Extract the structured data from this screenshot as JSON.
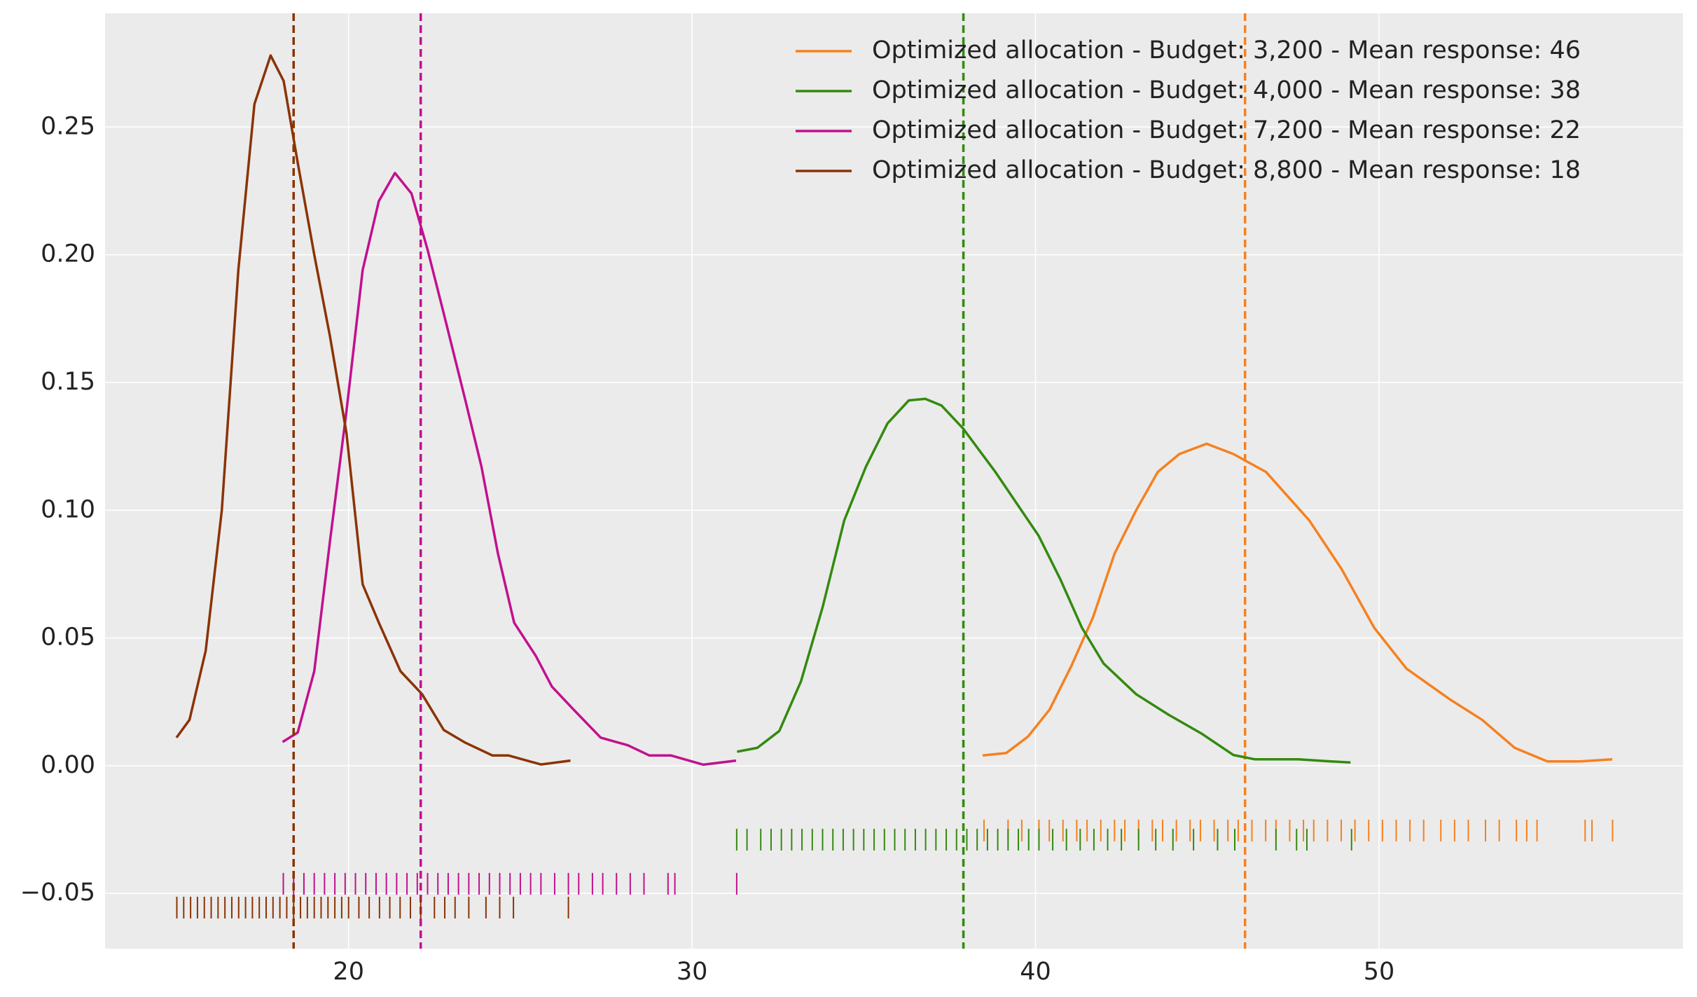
{
  "chart_data": {
    "type": "line",
    "subtype": "kde-with-rug",
    "xlim": [
      12.91,
      58.85
    ],
    "ylim": [
      -0.0716,
      0.2945
    ],
    "xticks": [
      20,
      30,
      40,
      50
    ],
    "yticks": [
      {
        "value": -0.05,
        "label": "−0.05"
      },
      {
        "value": 0,
        "label": "0.00"
      },
      0.05,
      {
        "value": 0.1,
        "label": "0.10"
      },
      0.15,
      {
        "value": 0.2,
        "label": "0.20"
      },
      0.25
    ],
    "grid": true,
    "legend": "upper right",
    "series": [
      {
        "name": "Optimized allocation - Budget: 3,200 - Mean response: 46",
        "color": "#f5811f",
        "mean": 46.1,
        "x": [
          38.46,
          39.15,
          39.78,
          40.41,
          41.04,
          41.67,
          42.3,
          42.93,
          43.56,
          44.19,
          44.98,
          45.76,
          46.71,
          47.97,
          48.91,
          49.86,
          50.8,
          52.06,
          53.0,
          53.95,
          54.9,
          55.84,
          56.79
        ],
        "values": [
          0.004,
          0.005,
          0.0114,
          0.022,
          0.039,
          0.058,
          0.083,
          0.1,
          0.115,
          0.122,
          0.126,
          0.122,
          0.115,
          0.096,
          0.077,
          0.054,
          0.038,
          0.026,
          0.018,
          0.007,
          0.0017,
          0.0017,
          0.0025
        ],
        "rug": [
          38.5,
          39.2,
          39.6,
          40.1,
          40.4,
          40.8,
          41.2,
          41.5,
          41.9,
          42.3,
          42.6,
          43.0,
          43.4,
          43.7,
          44.1,
          44.5,
          44.8,
          45.2,
          45.6,
          45.9,
          46.3,
          46.7,
          47.0,
          47.4,
          47.8,
          48.1,
          48.5,
          48.9,
          49.3,
          49.7,
          50.1,
          50.5,
          50.9,
          51.3,
          51.8,
          52.2,
          52.6,
          53.1,
          53.5,
          54.0,
          54.3,
          54.6,
          56.0,
          56.2,
          56.8
        ]
      },
      {
        "name": "Optimized allocation - Budget: 4,000 - Mean response: 38",
        "color": "#338a0f",
        "mean": 37.9,
        "x": [
          31.31,
          31.9,
          32.54,
          33.17,
          33.8,
          34.43,
          35.06,
          35.69,
          36.31,
          36.79,
          37.26,
          37.89,
          38.83,
          40.09,
          40.72,
          41.35,
          41.98,
          42.93,
          43.87,
          44.82,
          45.76,
          46.39,
          47.65,
          48.6,
          49.17
        ],
        "values": [
          0.0055,
          0.007,
          0.0136,
          0.033,
          0.062,
          0.096,
          0.117,
          0.134,
          0.143,
          0.1436,
          0.141,
          0.132,
          0.115,
          0.09,
          0.073,
          0.054,
          0.04,
          0.028,
          0.02,
          0.0127,
          0.0042,
          0.0025,
          0.0025,
          0.0017,
          0.0013
        ],
        "rug": [
          31.3,
          31.6,
          32.0,
          32.3,
          32.6,
          32.9,
          33.2,
          33.5,
          33.8,
          34.1,
          34.4,
          34.7,
          35.0,
          35.3,
          35.6,
          35.9,
          36.2,
          36.5,
          36.8,
          37.1,
          37.4,
          37.7,
          38.0,
          38.3,
          38.6,
          38.9,
          39.2,
          39.5,
          39.8,
          40.1,
          40.5,
          40.9,
          41.3,
          41.7,
          42.1,
          42.5,
          43.0,
          43.5,
          44.0,
          44.6,
          45.3,
          45.8,
          47.0,
          47.6,
          47.9,
          49.2
        ]
      },
      {
        "name": "Optimized allocation - Budget: 7,200 - Mean response: 22",
        "color": "#c2108f",
        "mean": 22.1,
        "x": [
          18.08,
          18.52,
          19.0,
          19.46,
          19.94,
          20.41,
          20.88,
          21.35,
          21.83,
          22.3,
          22.77,
          23.4,
          23.87,
          24.35,
          24.82,
          25.45,
          25.92,
          26.55,
          27.34,
          28.13,
          28.76,
          29.39,
          30.33,
          31.28
        ],
        "values": [
          0.0093,
          0.013,
          0.037,
          0.088,
          0.139,
          0.194,
          0.221,
          0.232,
          0.224,
          0.202,
          0.177,
          0.143,
          0.117,
          0.083,
          0.056,
          0.043,
          0.031,
          0.022,
          0.011,
          0.008,
          0.004,
          0.004,
          0.0004,
          0.002
        ],
        "rug": [
          18.1,
          18.4,
          18.7,
          19.0,
          19.3,
          19.6,
          19.9,
          20.2,
          20.5,
          20.8,
          21.1,
          21.4,
          21.7,
          22.0,
          22.3,
          22.6,
          22.9,
          23.2,
          23.5,
          23.8,
          24.1,
          24.4,
          24.7,
          25.0,
          25.3,
          25.6,
          26.0,
          26.4,
          26.7,
          27.1,
          27.4,
          27.8,
          28.2,
          28.6,
          29.3,
          29.5,
          31.3
        ]
      },
      {
        "name": "Optimized allocation - Budget: 8,800 - Mean response: 18",
        "color": "#8b3305",
        "mean": 18.4,
        "x": [
          14.99,
          15.37,
          15.84,
          16.31,
          16.79,
          17.26,
          17.73,
          18.11,
          18.52,
          19.0,
          19.46,
          19.94,
          20.41,
          20.88,
          21.51,
          22.14,
          22.77,
          23.4,
          24.19,
          24.66,
          25.6,
          26.46
        ],
        "values": [
          0.011,
          0.018,
          0.045,
          0.1,
          0.194,
          0.259,
          0.278,
          0.268,
          0.236,
          0.2,
          0.168,
          0.13,
          0.071,
          0.056,
          0.037,
          0.028,
          0.014,
          0.009,
          0.004,
          0.004,
          0.0005,
          0.002
        ],
        "rug": [
          15.0,
          15.2,
          15.4,
          15.6,
          15.8,
          16.0,
          16.2,
          16.4,
          16.6,
          16.8,
          17.0,
          17.2,
          17.4,
          17.6,
          17.8,
          18.0,
          18.2,
          18.4,
          18.6,
          18.8,
          19.0,
          19.2,
          19.4,
          19.6,
          19.8,
          20.0,
          20.3,
          20.6,
          20.9,
          21.2,
          21.5,
          21.8,
          22.1,
          22.5,
          22.8,
          23.1,
          23.5,
          24.0,
          24.4,
          24.8,
          26.4
        ]
      }
    ]
  }
}
